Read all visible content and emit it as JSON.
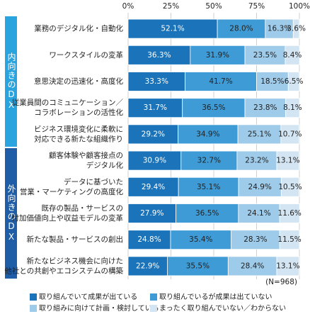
{
  "chart_data": {
    "type": "stacked-bar-horizontal",
    "groups": [
      {
        "label": "内向きのDX",
        "color": "#2aa4de",
        "categories": [
          [
            "業務のデジタル化・自動化"
          ],
          [
            "ワークスタイルの変革"
          ],
          [
            "意思決定の迅速化・高度化"
          ],
          [
            "従業員間のコミュニケーション／",
            "コラボレーションの活性化"
          ],
          [
            "ビジネス環境変化に柔軟に",
            "対応できる新たな組織作り"
          ]
        ]
      },
      {
        "label": "外向きのDX",
        "color": "#1f5ea6",
        "categories": [
          [
            "顧客体験や顧客接点の",
            "デジタル化"
          ],
          [
            "データに基づいた",
            "営業・マーケティングの高度化"
          ],
          [
            "既存の製品・サービスの",
            "付加価値向上や収益モデルの変革"
          ],
          [
            "新たな製品・サービスの創出"
          ],
          [
            "新たなビジネス機会に向けた",
            "他社との共創やエコシステムの構築"
          ]
        ]
      }
    ],
    "series": [
      {
        "name": "取り組んでいて成果が出ている",
        "color": "#1b73b9",
        "values": [
          52.1,
          36.3,
          33.3,
          31.7,
          29.2,
          30.9,
          29.4,
          27.9,
          24.8,
          22.9
        ],
        "value_labels": [
          "52.1%",
          "36.3%",
          "33.3%",
          "31.7%",
          "29.2%",
          "30.9%",
          "29.4%",
          "27.9%",
          "24.8%",
          "22.9%"
        ]
      },
      {
        "name": "取り組んでいるが成果は出ていない",
        "color": "#3f9bd6",
        "values": [
          28.0,
          31.9,
          41.7,
          36.5,
          34.9,
          32.7,
          35.1,
          36.5,
          35.4,
          35.5
        ],
        "value_labels": [
          "28.0%",
          "31.9%",
          "41.7%",
          "36.5%",
          "34.9%",
          "32.7%",
          "35.1%",
          "36.5%",
          "35.4%",
          "35.5%"
        ]
      },
      {
        "name": "取り組みに向けて計画・検討している",
        "color": "#9ecbea",
        "values": [
          16.3,
          23.5,
          18.5,
          23.8,
          25.1,
          23.2,
          24.9,
          24.1,
          28.3,
          28.4
        ],
        "value_labels": [
          "16.3%",
          "23.5%",
          "18.5%",
          "23.8%",
          "25.1%",
          "23.2%",
          "24.9%",
          "24.1%",
          "28.3%",
          "28.4%"
        ]
      },
      {
        "name": "まったく取り組んでいない／わからない",
        "color": "#d3e5f2",
        "values": [
          3.6,
          8.4,
          6.5,
          8.1,
          10.7,
          13.1,
          10.5,
          11.6,
          11.5,
          13.1
        ],
        "value_labels": [
          "3.6%",
          "8.4%",
          "6.5%",
          "8.1%",
          "10.7%",
          "13.1%",
          "10.5%",
          "11.6%",
          "11.5%",
          "13.1%"
        ]
      }
    ],
    "xlim": [
      0,
      100
    ],
    "xticks": [
      {
        "value": 0,
        "label": "0%"
      },
      {
        "value": 25,
        "label": "25%"
      },
      {
        "value": 50,
        "label": "50%"
      },
      {
        "value": 75,
        "label": "75%"
      },
      {
        "value": 100,
        "label": "100%"
      }
    ],
    "grid": true,
    "sample_size_note": "(N=968)"
  }
}
